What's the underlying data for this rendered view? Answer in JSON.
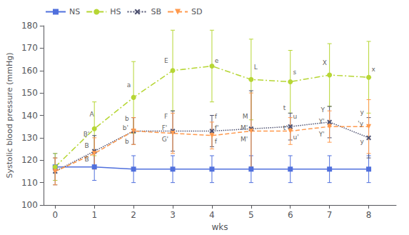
{
  "chart_data": {
    "type": "line",
    "x": [
      0,
      1,
      2,
      3,
      4,
      5,
      6,
      7,
      8
    ],
    "xlabel": "wks",
    "ylabel": "Systolic blood pressure (mmHg)",
    "xlim": [
      -0.3,
      8.7
    ],
    "xticks": [
      0,
      1,
      2,
      3,
      4,
      5,
      6,
      7,
      8
    ],
    "ylim": [
      100,
      180
    ],
    "yticks": [
      100,
      110,
      120,
      130,
      140,
      150,
      160,
      170,
      180
    ],
    "grid": false,
    "legend": "upper left",
    "series": [
      {
        "name": "NS",
        "marker": "square",
        "line_style": "solid",
        "values": [
          117,
          117,
          116,
          116,
          116,
          116,
          116,
          116,
          116
        ],
        "yerr": [
          6,
          6,
          6,
          6,
          6,
          6,
          6,
          6,
          6
        ]
      },
      {
        "name": "HS",
        "marker": "circle",
        "line_style": "dashdot",
        "values": [
          117,
          134,
          148,
          160,
          162,
          156,
          155,
          158,
          157
        ],
        "yerr": [
          6,
          12,
          16,
          18,
          16,
          18,
          14,
          14,
          16
        ]
      },
      {
        "name": "SB",
        "marker": "x",
        "line_style": "dotted",
        "values": [
          115,
          124,
          133,
          133,
          133,
          134,
          135,
          137,
          130
        ],
        "yerr": [
          6,
          7,
          6,
          9,
          7,
          17,
          6,
          7,
          9
        ]
      },
      {
        "name": "SD",
        "marker": "triangle_down",
        "line_style": "dashed",
        "values": [
          115,
          123,
          133,
          132,
          131,
          133,
          133,
          135,
          135
        ],
        "yerr": [
          6,
          7,
          6,
          9,
          6,
          17,
          6,
          7,
          12
        ]
      }
    ],
    "annotations": [
      {
        "text": "A",
        "x": 0.88,
        "y": 139
      },
      {
        "text": "B",
        "x": 0.75,
        "y": 125
      },
      {
        "text": "B'",
        "x": 0.72,
        "y": 130
      },
      {
        "text": "B",
        "x": 0.75,
        "y": 119
      },
      {
        "text": "a",
        "x": 1.83,
        "y": 152
      },
      {
        "text": "b",
        "x": 1.78,
        "y": 137
      },
      {
        "text": "b'",
        "x": 1.72,
        "y": 133
      },
      {
        "text": "b",
        "x": 1.78,
        "y": 127
      },
      {
        "text": "E",
        "x": 2.78,
        "y": 163
      },
      {
        "text": "F",
        "x": 2.78,
        "y": 138
      },
      {
        "text": "F'",
        "x": 2.72,
        "y": 133
      },
      {
        "text": "G'",
        "x": 2.72,
        "y": 128
      },
      {
        "text": "e",
        "x": 4.07,
        "y": 163
      },
      {
        "text": "f",
        "x": 4.07,
        "y": 138
      },
      {
        "text": "f'",
        "x": 4.07,
        "y": 133
      },
      {
        "text": "f",
        "x": 4.07,
        "y": 127
      },
      {
        "text": "L",
        "x": 5.07,
        "y": 160
      },
      {
        "text": "M",
        "x": 4.78,
        "y": 138
      },
      {
        "text": "M'",
        "x": 4.73,
        "y": 133
      },
      {
        "text": "M'",
        "x": 4.73,
        "y": 128
      },
      {
        "text": "s",
        "x": 6.07,
        "y": 158
      },
      {
        "text": "t",
        "x": 5.82,
        "y": 142
      },
      {
        "text": "u",
        "x": 6.07,
        "y": 138
      },
      {
        "text": "t'",
        "x": 5.82,
        "y": 133
      },
      {
        "text": "u'",
        "x": 6.07,
        "y": 129
      },
      {
        "text": "X",
        "x": 6.82,
        "y": 162
      },
      {
        "text": "Y",
        "x": 6.78,
        "y": 141
      },
      {
        "text": "Y'",
        "x": 6.73,
        "y": 136
      },
      {
        "text": "Y'",
        "x": 6.73,
        "y": 130
      },
      {
        "text": "x",
        "x": 8.07,
        "y": 159
      },
      {
        "text": "y",
        "x": 7.78,
        "y": 140
      },
      {
        "text": "'y",
        "x": 7.72,
        "y": 135
      },
      {
        "text": "y",
        "x": 7.78,
        "y": 127
      }
    ]
  }
}
